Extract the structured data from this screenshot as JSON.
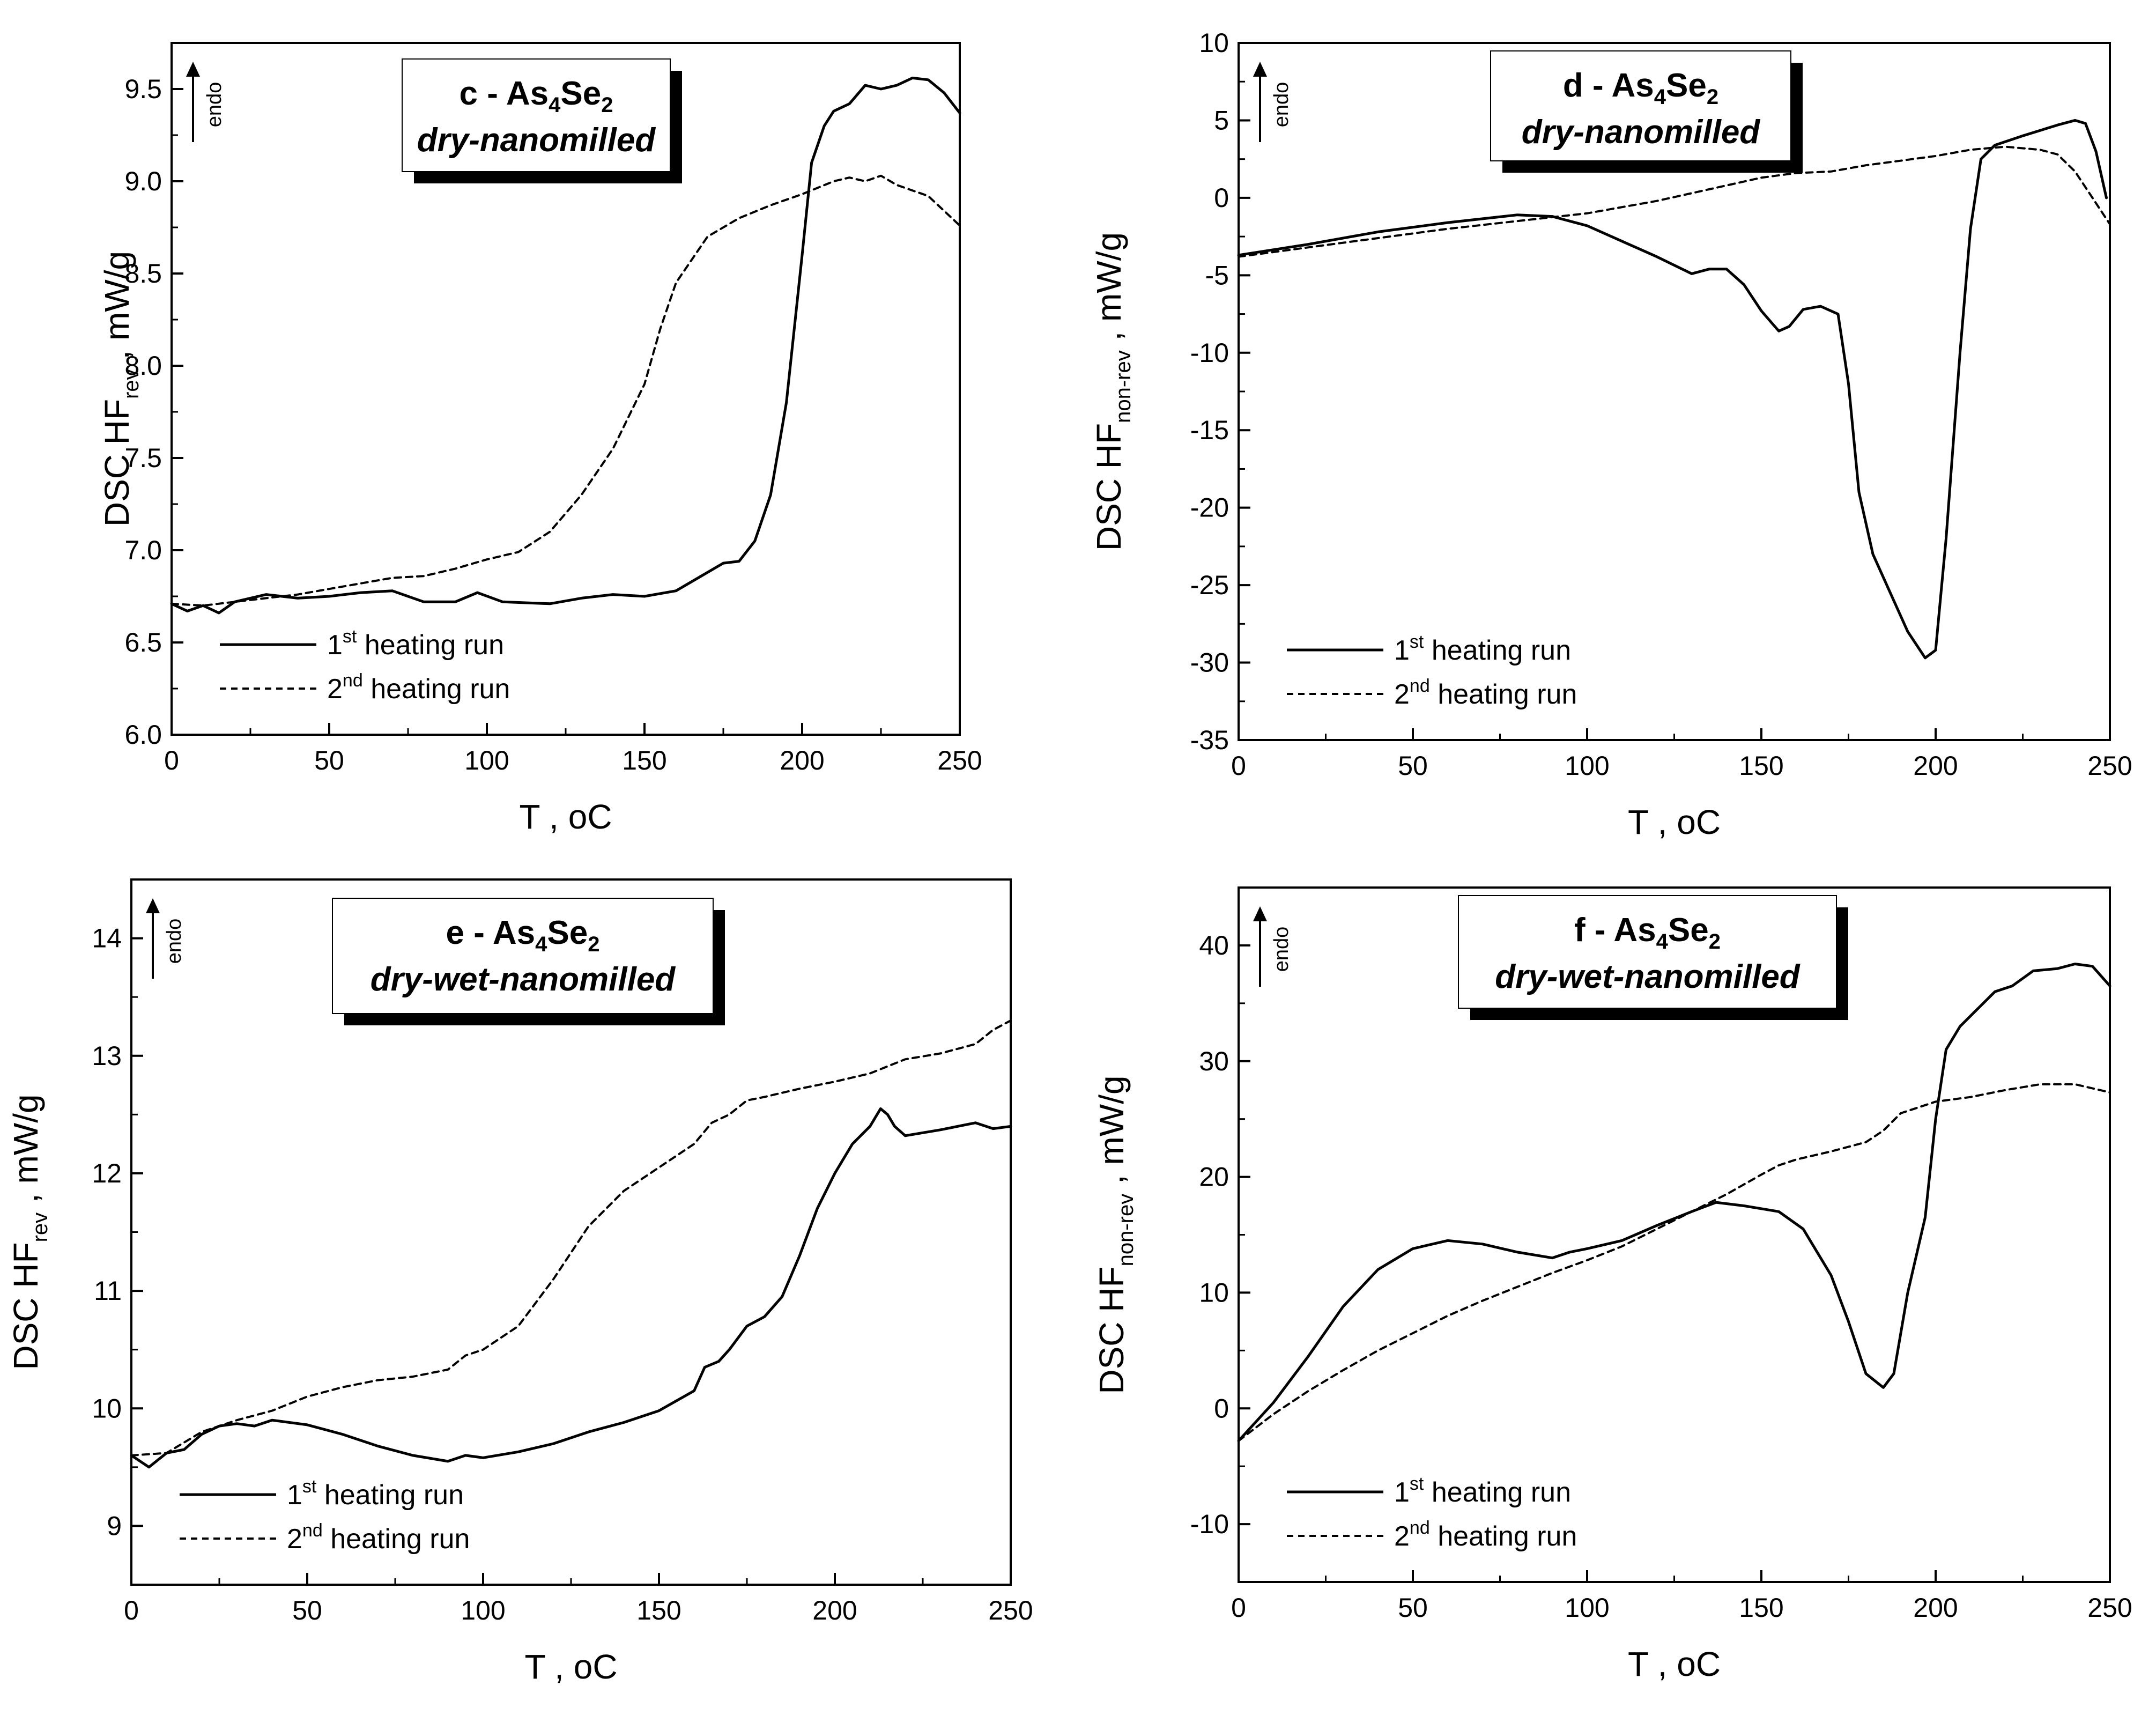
{
  "chart_data": [
    {
      "type": "line",
      "panel": "c",
      "title_prefix": "c - As",
      "title_sub1": "4",
      "title_mid": "Se",
      "title_sub2": "2",
      "subtitle": "dry-nanomilled",
      "endo_label": "endo",
      "xlabel": "T ,  ",
      "xlabel_unit": "oC",
      "ylabel_main": "DSC  HF",
      "ylabel_sub": "rev",
      "ylabel_unit": " ,   mW/g",
      "xlim": [
        0,
        250
      ],
      "ylim": [
        6.0,
        9.75
      ],
      "xticks": [
        0,
        50,
        100,
        150,
        200,
        250
      ],
      "yticks": [
        6.0,
        6.5,
        7.0,
        7.5,
        8.0,
        8.5,
        9.0,
        9.5
      ],
      "ytick_labels": [
        "6.0",
        "6.5",
        "7.0",
        "7.5",
        "8.0",
        "8.5",
        "9.0",
        "9.5"
      ],
      "legend": {
        "position": "bottom-left",
        "entries": [
          {
            "num": "1",
            "sup": "st",
            "text": " heating run",
            "style": "solid"
          },
          {
            "num": "2",
            "sup": "nd",
            "text": " heating run",
            "style": "dashed"
          }
        ]
      },
      "series": [
        {
          "name": "1st heating run",
          "style": "solid",
          "x": [
            0,
            5,
            10,
            15,
            20,
            25,
            30,
            40,
            50,
            60,
            70,
            80,
            90,
            97,
            105,
            120,
            130,
            140,
            150,
            160,
            170,
            175,
            180,
            185,
            190,
            195,
            200,
            203,
            207,
            210,
            215,
            220,
            225,
            230,
            235,
            240,
            245,
            250
          ],
          "y": [
            6.71,
            6.67,
            6.7,
            6.66,
            6.72,
            6.74,
            6.76,
            6.74,
            6.75,
            6.77,
            6.78,
            6.72,
            6.72,
            6.77,
            6.72,
            6.71,
            6.74,
            6.76,
            6.75,
            6.78,
            6.88,
            6.93,
            6.94,
            7.05,
            7.3,
            7.8,
            8.6,
            9.1,
            9.3,
            9.38,
            9.42,
            9.52,
            9.5,
            9.52,
            9.56,
            9.55,
            9.48,
            9.37
          ]
        },
        {
          "name": "2nd heating run",
          "style": "dashed",
          "x": [
            0,
            10,
            20,
            30,
            40,
            50,
            60,
            70,
            80,
            90,
            100,
            110,
            120,
            130,
            140,
            150,
            155,
            160,
            170,
            180,
            190,
            200,
            210,
            215,
            220,
            225,
            230,
            240,
            250
          ],
          "y": [
            6.71,
            6.7,
            6.72,
            6.74,
            6.76,
            6.79,
            6.82,
            6.85,
            6.86,
            6.9,
            6.95,
            6.99,
            7.1,
            7.3,
            7.55,
            7.9,
            8.2,
            8.45,
            8.7,
            8.8,
            8.87,
            8.93,
            9.0,
            9.02,
            9.0,
            9.03,
            8.98,
            8.92,
            8.76
          ]
        }
      ]
    },
    {
      "type": "line",
      "panel": "d",
      "title_prefix": "d - As",
      "title_sub1": "4",
      "title_mid": "Se",
      "title_sub2": "2",
      "subtitle": "dry-nanomilled",
      "endo_label": "endo",
      "xlabel": "T ,  ",
      "xlabel_unit": "oC",
      "ylabel_main": "DSC  HF",
      "ylabel_sub": "non-rev",
      "ylabel_unit": " ,   mW/g",
      "xlim": [
        0,
        250
      ],
      "ylim": [
        -35,
        10
      ],
      "xticks": [
        0,
        50,
        100,
        150,
        200,
        250
      ],
      "yticks": [
        -35,
        -30,
        -25,
        -20,
        -15,
        -10,
        -5,
        0,
        5,
        10
      ],
      "ytick_labels": [
        "-35",
        "-30",
        "-25",
        "-20",
        "-15",
        "-10",
        "-5",
        "0",
        "5",
        "10"
      ],
      "legend": {
        "position": "bottom-left",
        "entries": [
          {
            "num": "1",
            "sup": "st",
            "text": " heating run",
            "style": "solid"
          },
          {
            "num": "2",
            "sup": "nd",
            "text": " heating run",
            "style": "dashed"
          }
        ]
      },
      "series": [
        {
          "name": "1st heating run",
          "style": "solid",
          "x": [
            0,
            20,
            40,
            60,
            80,
            90,
            100,
            110,
            120,
            130,
            135,
            140,
            145,
            150,
            155,
            158,
            162,
            167,
            172,
            175,
            178,
            182,
            187,
            192,
            197,
            200,
            203,
            207,
            210,
            213,
            217,
            225,
            235,
            240,
            243,
            246,
            249
          ],
          "y": [
            -3.7,
            -3.0,
            -2.2,
            -1.6,
            -1.1,
            -1.2,
            -1.8,
            -2.8,
            -3.8,
            -4.9,
            -4.6,
            -4.6,
            -5.6,
            -7.3,
            -8.6,
            -8.3,
            -7.2,
            -7.0,
            -7.5,
            -12,
            -19,
            -23,
            -25.5,
            -28,
            -29.7,
            -29.2,
            -22,
            -10,
            -2,
            2.5,
            3.4,
            4.0,
            4.7,
            5.0,
            4.8,
            3.0,
            0.0
          ]
        },
        {
          "name": "2nd heating run",
          "style": "dashed",
          "x": [
            0,
            20,
            40,
            60,
            80,
            100,
            120,
            140,
            150,
            160,
            170,
            180,
            190,
            200,
            210,
            215,
            220,
            230,
            235,
            240,
            245,
            250
          ],
          "y": [
            -3.8,
            -3.2,
            -2.6,
            -2.0,
            -1.5,
            -1.0,
            -0.2,
            0.8,
            1.3,
            1.6,
            1.7,
            2.1,
            2.4,
            2.7,
            3.1,
            3.2,
            3.3,
            3.1,
            2.8,
            1.7,
            0.0,
            -1.7
          ]
        }
      ]
    },
    {
      "type": "line",
      "panel": "e",
      "title_prefix": "e - As",
      "title_sub1": "4",
      "title_mid": "Se",
      "title_sub2": "2",
      "subtitle": "dry-wet-nanomilled",
      "endo_label": "endo",
      "xlabel": "T ,  ",
      "xlabel_unit": "oC",
      "ylabel_main": "DSC  HF",
      "ylabel_sub": "rev",
      "ylabel_unit": " ,   mW/g",
      "xlim": [
        0,
        250
      ],
      "ylim": [
        8.5,
        14.5
      ],
      "xticks": [
        0,
        50,
        100,
        150,
        200,
        250
      ],
      "yticks": [
        9,
        10,
        11,
        12,
        13,
        14
      ],
      "ytick_labels": [
        "9",
        "10",
        "11",
        "12",
        "13",
        "14"
      ],
      "legend": {
        "position": "bottom-left",
        "entries": [
          {
            "num": "1",
            "sup": "st",
            "text": " heating run",
            "style": "solid"
          },
          {
            "num": "2",
            "sup": "nd",
            "text": " heating run",
            "style": "dashed"
          }
        ]
      },
      "series": [
        {
          "name": "1st heating run",
          "style": "solid",
          "x": [
            0,
            5,
            10,
            15,
            20,
            25,
            30,
            35,
            40,
            50,
            60,
            70,
            80,
            90,
            95,
            100,
            110,
            120,
            130,
            140,
            150,
            160,
            163,
            167,
            170,
            175,
            180,
            185,
            190,
            195,
            200,
            205,
            210,
            213,
            215,
            217,
            220,
            230,
            240,
            245,
            250
          ],
          "y": [
            9.6,
            9.5,
            9.62,
            9.65,
            9.78,
            9.85,
            9.87,
            9.85,
            9.9,
            9.86,
            9.78,
            9.68,
            9.6,
            9.55,
            9.6,
            9.58,
            9.63,
            9.7,
            9.8,
            9.88,
            9.98,
            10.15,
            10.35,
            10.4,
            10.5,
            10.7,
            10.78,
            10.95,
            11.3,
            11.7,
            12.0,
            12.25,
            12.4,
            12.55,
            12.5,
            12.4,
            12.32,
            12.37,
            12.43,
            12.38,
            12.4
          ]
        },
        {
          "name": "2nd heating run",
          "style": "dashed",
          "x": [
            0,
            10,
            20,
            30,
            40,
            50,
            60,
            70,
            80,
            90,
            95,
            100,
            110,
            120,
            130,
            140,
            150,
            160,
            165,
            170,
            175,
            180,
            190,
            200,
            210,
            220,
            230,
            240,
            245,
            250
          ],
          "y": [
            9.6,
            9.62,
            9.8,
            9.9,
            9.98,
            10.1,
            10.18,
            10.24,
            10.27,
            10.33,
            10.45,
            10.5,
            10.7,
            11.1,
            11.55,
            11.85,
            12.05,
            12.25,
            12.43,
            12.5,
            12.62,
            12.65,
            12.72,
            12.78,
            12.85,
            12.97,
            13.02,
            13.1,
            13.22,
            13.3
          ]
        }
      ]
    },
    {
      "type": "line",
      "panel": "f",
      "title_prefix": "f - As",
      "title_sub1": "4",
      "title_mid": "Se",
      "title_sub2": "2",
      "subtitle": "dry-wet-nanomilled",
      "endo_label": "endo",
      "xlabel": "T ,  ",
      "xlabel_unit": "oC",
      "ylabel_main": "DSC  HF",
      "ylabel_sub": "non-rev",
      "ylabel_unit": " ,   mW/g",
      "xlim": [
        0,
        250
      ],
      "ylim": [
        -15,
        45
      ],
      "xticks": [
        0,
        50,
        100,
        150,
        200,
        250
      ],
      "yticks": [
        -10,
        0,
        10,
        20,
        30,
        40
      ],
      "ytick_labels": [
        "-10",
        "0",
        "10",
        "20",
        "30",
        "40"
      ],
      "legend": {
        "position": "bottom-left",
        "entries": [
          {
            "num": "1",
            "sup": "st",
            "text": " heating run",
            "style": "solid"
          },
          {
            "num": "2",
            "sup": "nd",
            "text": " heating run",
            "style": "dashed"
          }
        ]
      },
      "series": [
        {
          "name": "1st heating run",
          "style": "solid",
          "x": [
            0,
            10,
            20,
            30,
            40,
            50,
            60,
            70,
            80,
            90,
            95,
            100,
            110,
            120,
            130,
            137,
            145,
            155,
            162,
            170,
            175,
            180,
            185,
            188,
            192,
            197,
            200,
            203,
            207,
            212,
            217,
            222,
            228,
            235,
            240,
            245,
            250
          ],
          "y": [
            -2.8,
            0.5,
            4.5,
            8.8,
            12.0,
            13.8,
            14.5,
            14.2,
            13.5,
            13.0,
            13.5,
            13.8,
            14.5,
            15.8,
            17.0,
            17.8,
            17.5,
            17.0,
            15.5,
            11.5,
            7.5,
            3.0,
            1.8,
            3.0,
            10.0,
            16.5,
            25.0,
            31.0,
            33.0,
            34.5,
            36.0,
            36.5,
            37.8,
            38.0,
            38.4,
            38.2,
            36.5
          ]
        },
        {
          "name": "2nd heating run",
          "style": "dashed",
          "x": [
            0,
            10,
            20,
            30,
            40,
            50,
            60,
            70,
            80,
            90,
            100,
            110,
            120,
            130,
            140,
            150,
            155,
            160,
            170,
            180,
            185,
            190,
            200,
            210,
            220,
            230,
            240,
            250
          ],
          "y": [
            -2.8,
            -0.5,
            1.5,
            3.3,
            5.0,
            6.5,
            8.0,
            9.3,
            10.5,
            11.7,
            12.8,
            14.0,
            15.5,
            17.0,
            18.5,
            20.2,
            21.0,
            21.5,
            22.2,
            23.0,
            24.0,
            25.5,
            26.5,
            26.9,
            27.5,
            28.0,
            28.0,
            27.3
          ]
        }
      ]
    }
  ]
}
